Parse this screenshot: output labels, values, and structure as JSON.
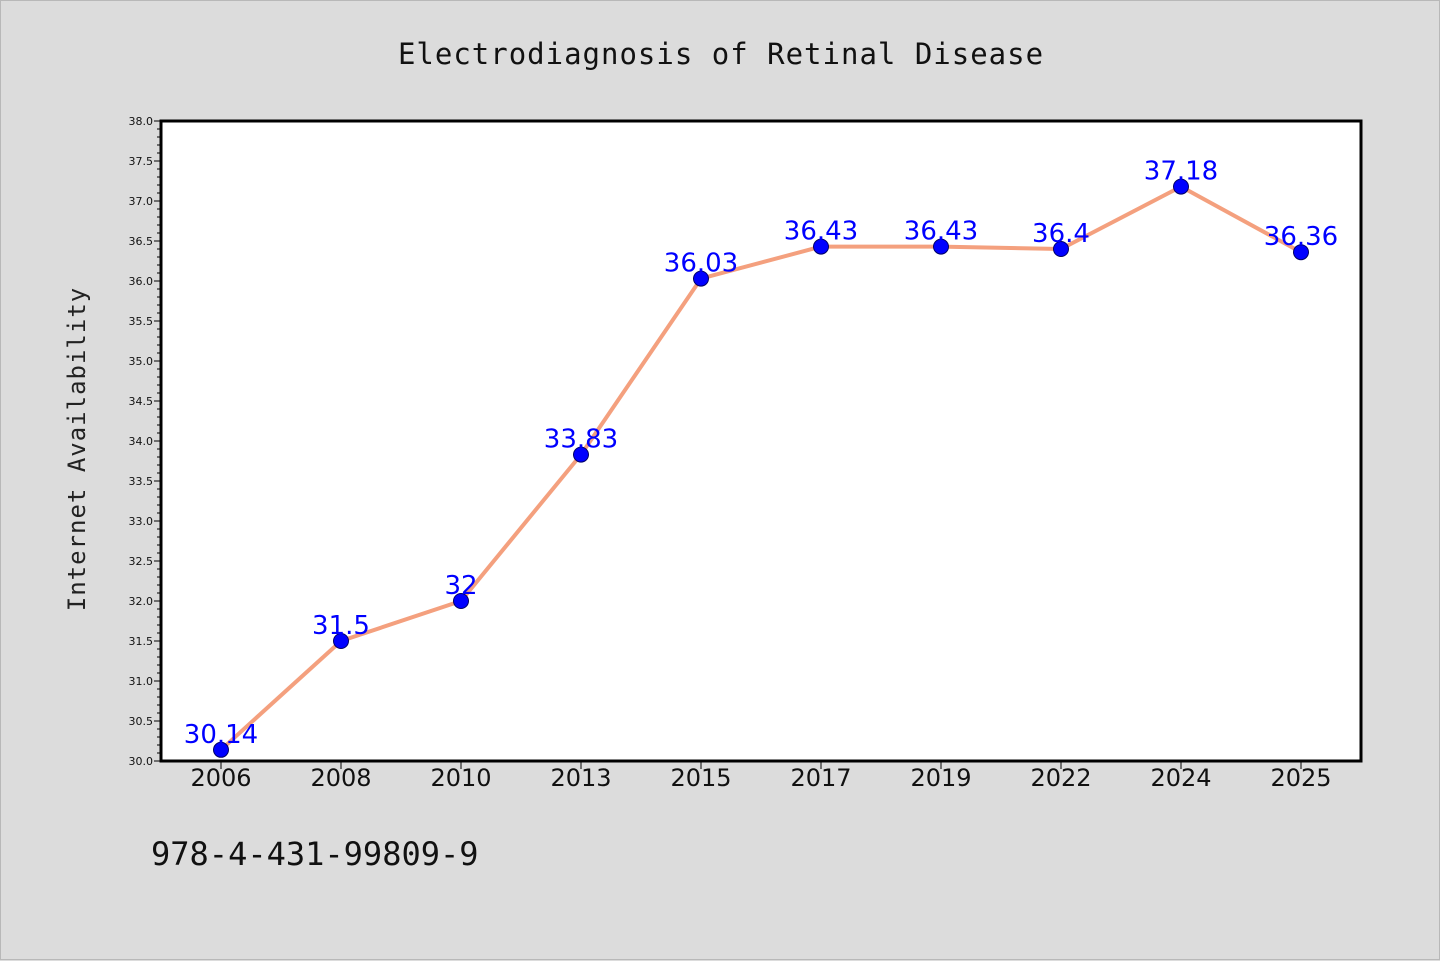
{
  "chart_data": {
    "type": "line",
    "title": "Electrodiagnosis of Retinal Disease",
    "xlabel": "",
    "ylabel": "Internet Availability",
    "categories": [
      "2006",
      "2008",
      "2010",
      "2013",
      "2015",
      "2017",
      "2019",
      "2022",
      "2024",
      "2025"
    ],
    "series": [
      {
        "values": [
          30.14,
          31.5,
          32,
          33.83,
          36.03,
          36.43,
          36.43,
          36.4,
          37.18,
          36.36
        ],
        "labels": [
          "30.14",
          "31.5",
          "32",
          "33.83",
          "36.03",
          "36.43",
          "36.43",
          "36.4",
          "37.18",
          "36.36"
        ]
      }
    ],
    "ylim": [
      30.0,
      38.0
    ],
    "yticks": [
      "30.0",
      "30.5",
      "31.0",
      "31.5",
      "32.0",
      "32.5",
      "33.0",
      "33.5",
      "34.0",
      "34.5",
      "35.0",
      "35.5",
      "36.0",
      "36.5",
      "37.0",
      "37.5",
      "38.0"
    ],
    "grid": false,
    "line_color": "#f4a07e",
    "marker_color": "#0000ff",
    "label_color": "#0000ff",
    "annotation": "978-4-431-99809-9"
  }
}
